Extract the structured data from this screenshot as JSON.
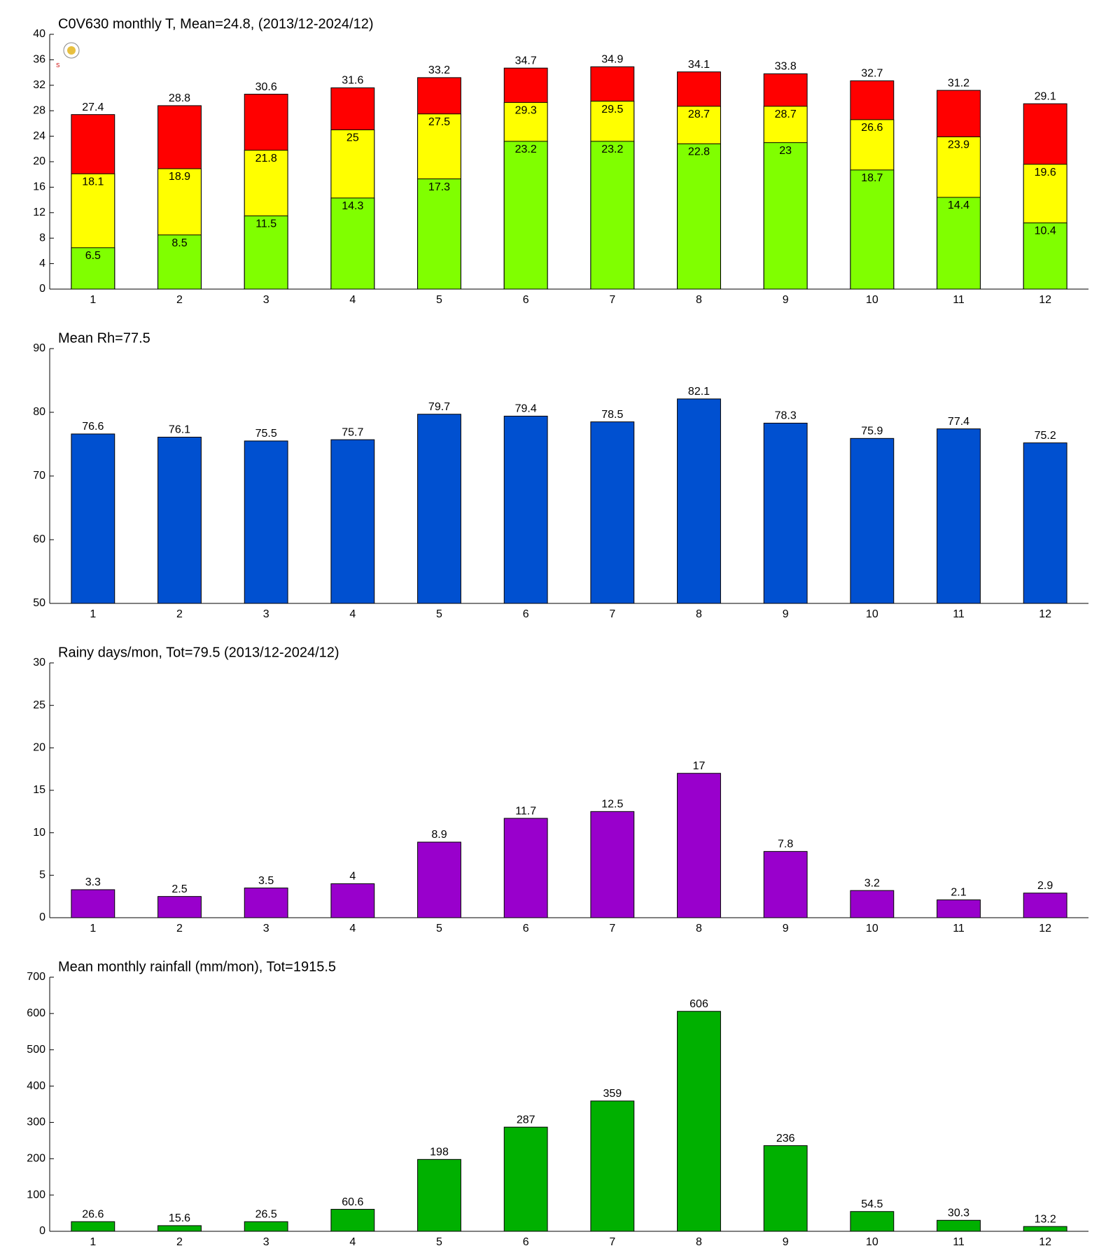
{
  "chart_data": [
    {
      "type": "bar",
      "barmode": "overlay",
      "title": "C0V630 monthly T, Mean=24.8, (2013/12-2024/12)",
      "categories": [
        1,
        2,
        3,
        4,
        5,
        6,
        7,
        8,
        9,
        10,
        11,
        12
      ],
      "series": [
        {
          "color": "#ff0000",
          "values": [
            27.4,
            28.8,
            30.6,
            31.6,
            33.2,
            34.7,
            34.9,
            34.1,
            33.8,
            32.7,
            31.2,
            29.1
          ]
        },
        {
          "color": "#ffff00",
          "values": [
            18.1,
            18.9,
            21.8,
            25,
            27.5,
            29.3,
            29.5,
            28.7,
            28.7,
            26.6,
            23.9,
            19.6
          ]
        },
        {
          "color": "#80ff00",
          "values": [
            6.5,
            8.5,
            11.5,
            14.3,
            17.3,
            23.2,
            23.2,
            22.8,
            23,
            18.7,
            14.4,
            10.4
          ]
        }
      ],
      "ylim": [
        0,
        40
      ],
      "yticks": [
        0,
        4,
        8,
        12,
        16,
        20,
        24,
        28,
        32,
        36,
        40
      ]
    },
    {
      "type": "bar",
      "title": "Mean Rh=77.5",
      "categories": [
        1,
        2,
        3,
        4,
        5,
        6,
        7,
        8,
        9,
        10,
        11,
        12
      ],
      "series": [
        {
          "color": "#0050d0",
          "values": [
            76.6,
            76.1,
            75.5,
            75.7,
            79.7,
            79.4,
            78.5,
            82.1,
            78.3,
            75.9,
            77.4,
            75.2
          ]
        }
      ],
      "ylim": [
        50,
        90
      ],
      "yticks": [
        50,
        60,
        70,
        80,
        90
      ]
    },
    {
      "type": "bar",
      "title": "Rainy days/mon, Tot=79.5 (2013/12-2024/12)",
      "categories": [
        1,
        2,
        3,
        4,
        5,
        6,
        7,
        8,
        9,
        10,
        11,
        12
      ],
      "series": [
        {
          "color": "#9900cc",
          "values": [
            3.3,
            2.5,
            3.5,
            4,
            8.9,
            11.7,
            12.5,
            17,
            7.8,
            3.2,
            2.1,
            2.9
          ]
        }
      ],
      "ylim": [
        0,
        30
      ],
      "yticks": [
        0,
        5,
        10,
        15,
        20,
        25,
        30
      ]
    },
    {
      "type": "bar",
      "title": "Mean monthly rainfall (mm/mon), Tot=1915.5",
      "categories": [
        1,
        2,
        3,
        4,
        5,
        6,
        7,
        8,
        9,
        10,
        11,
        12
      ],
      "series": [
        {
          "color": "#00b000",
          "values": [
            26.6,
            15.6,
            26.5,
            60.6,
            198,
            287,
            359,
            606,
            236,
            54.5,
            30.3,
            13.2
          ]
        }
      ],
      "ylim": [
        0,
        700
      ],
      "yticks": [
        0,
        100,
        200,
        300,
        400,
        500,
        600,
        700
      ]
    }
  ]
}
